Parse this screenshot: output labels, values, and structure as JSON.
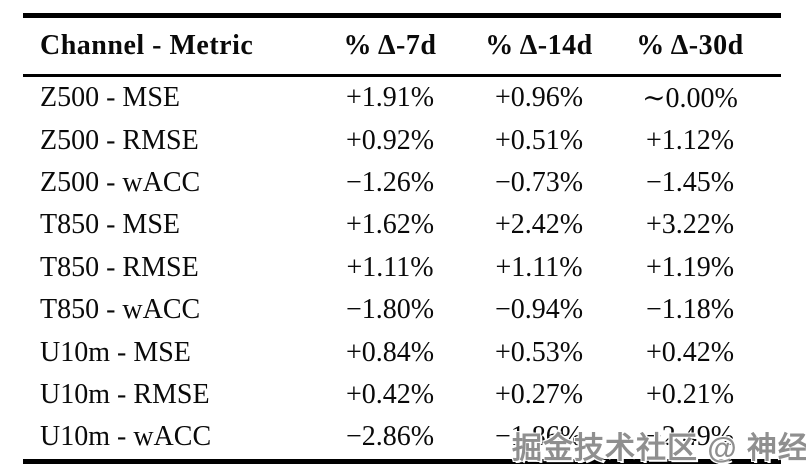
{
  "table": {
    "headers": [
      "Channel - Metric",
      "% Δ-7d",
      "% Δ-14d",
      "% Δ-30d"
    ],
    "rows": [
      {
        "label": "Z500 - MSE",
        "values": [
          "+1.91%",
          "+0.96%",
          "∼0.00%"
        ]
      },
      {
        "label": "Z500 - RMSE",
        "values": [
          "+0.92%",
          "+0.51%",
          "+1.12%"
        ]
      },
      {
        "label": "Z500 - wACC",
        "values": [
          "−1.26%",
          "−0.73%",
          "−1.45%"
        ]
      },
      {
        "label": "T850 - MSE",
        "values": [
          "+1.62%",
          "+2.42%",
          "+3.22%"
        ]
      },
      {
        "label": "T850 - RMSE",
        "values": [
          "+1.11%",
          "+1.11%",
          "+1.19%"
        ]
      },
      {
        "label": "T850 - wACC",
        "values": [
          "−1.80%",
          "−0.94%",
          "−1.18%"
        ]
      },
      {
        "label": "U10m - MSE",
        "values": [
          "+0.84%",
          "+0.53%",
          "+0.42%"
        ]
      },
      {
        "label": "U10m - RMSE",
        "values": [
          "+0.42%",
          "+0.27%",
          "+0.21%"
        ]
      },
      {
        "label": "U10m - wACC",
        "values": [
          "−2.86%",
          "−1.86%",
          "−2.49%"
        ]
      }
    ]
  },
  "watermark": {
    "text": "掘金技术社区 @ 神经星星"
  },
  "colors": {
    "text": "#0a0a0a",
    "rule": "#000000",
    "background": "#ffffff",
    "watermark": "#8f8f8f"
  },
  "chart_data": {
    "type": "table",
    "title": "",
    "columns": [
      "Channel - Metric",
      "% Δ-7d",
      "% Δ-14d",
      "% Δ-30d"
    ],
    "rows": [
      [
        "Z500 - MSE",
        "+1.91%",
        "+0.96%",
        "∼0.00%"
      ],
      [
        "Z500 - RMSE",
        "+0.92%",
        "+0.51%",
        "+1.12%"
      ],
      [
        "Z500 - wACC",
        "−1.26%",
        "−0.73%",
        "−1.45%"
      ],
      [
        "T850 - MSE",
        "+1.62%",
        "+2.42%",
        "+3.22%"
      ],
      [
        "T850 - RMSE",
        "+1.11%",
        "+1.11%",
        "+1.19%"
      ],
      [
        "T850 - wACC",
        "−1.80%",
        "−0.94%",
        "−1.18%"
      ],
      [
        "U10m - MSE",
        "+0.84%",
        "+0.53%",
        "+0.42%"
      ],
      [
        "U10m - RMSE",
        "+0.42%",
        "+0.27%",
        "+0.21%"
      ],
      [
        "U10m - wACC",
        "−2.86%",
        "−1.86%",
        "−2.49%"
      ]
    ]
  }
}
